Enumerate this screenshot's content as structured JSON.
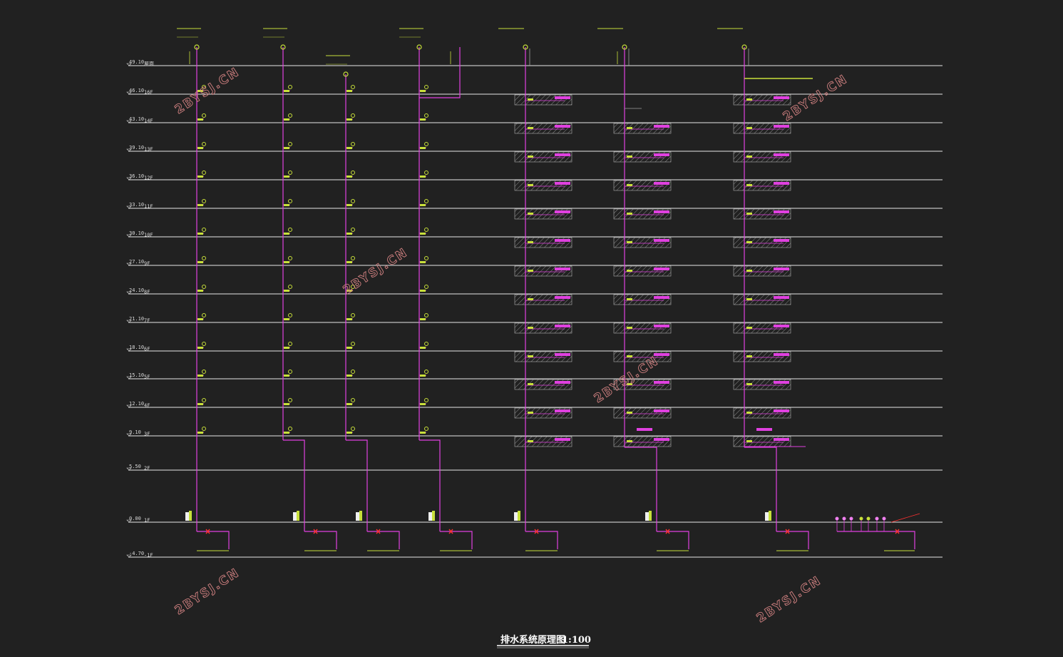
{
  "title": "排水系统原理图",
  "scale": "1:100",
  "watermark": "2BYSJ.CN",
  "levels": [
    {
      "elev": "49.10",
      "floor": "屋面"
    },
    {
      "elev": "46.10",
      "floor": "16F"
    },
    {
      "elev": "43.10",
      "floor": "14F"
    },
    {
      "elev": "39.10",
      "floor": "13F"
    },
    {
      "elev": "36.10",
      "floor": "12F"
    },
    {
      "elev": "33.10",
      "floor": "11F"
    },
    {
      "elev": "30.10",
      "floor": "10F"
    },
    {
      "elev": "27.10",
      "floor": "9F"
    },
    {
      "elev": "24.10",
      "floor": "8F"
    },
    {
      "elev": "21.10",
      "floor": "7F"
    },
    {
      "elev": "18.10",
      "floor": "6F"
    },
    {
      "elev": "15.10",
      "floor": "5F"
    },
    {
      "elev": "12.10",
      "floor": "4F"
    },
    {
      "elev": "9.10",
      "floor": "3F"
    },
    {
      "elev": "5.50",
      "floor": "2F"
    },
    {
      "elev": "0.00",
      "floor": "1F"
    },
    {
      "elev": "-4.70",
      "floor": "-1F"
    }
  ],
  "colors": {
    "background": "#212121",
    "level_line": "#e8e8e8",
    "pipe": "#e040e0",
    "fixture": "#c8e03a",
    "valve": "#ff3030",
    "hatch": "#8a8a8a",
    "watermark": "#d08080"
  },
  "icons": [
    "vent-cap-icon",
    "floor-drain-icon",
    "cleanout-icon",
    "gate-valve-icon"
  ]
}
